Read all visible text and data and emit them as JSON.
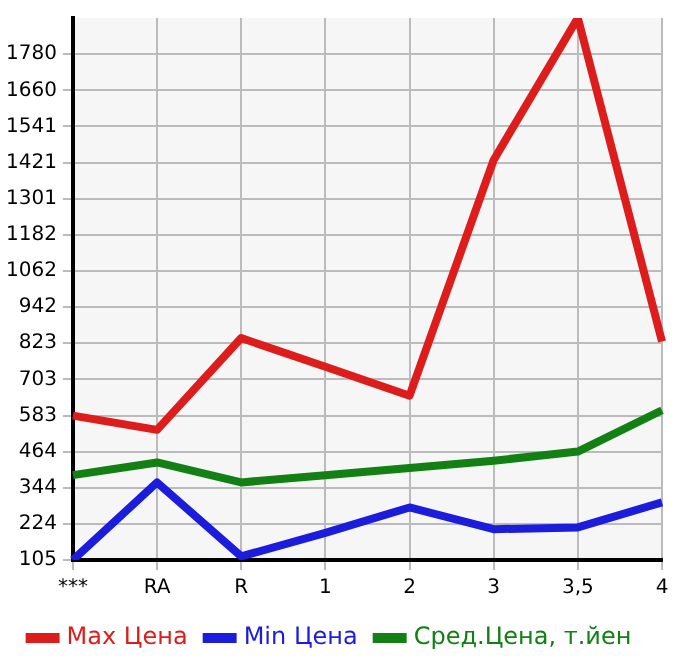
{
  "chart_data": {
    "type": "line",
    "categories": [
      "***",
      "RA",
      "R",
      "1",
      "2",
      "3",
      "3,5",
      "4"
    ],
    "series": [
      {
        "name": "Max Цена",
        "color": "#dd1c1c",
        "values": [
          583,
          536,
          840,
          745,
          649,
          1430,
          1900,
          829
        ]
      },
      {
        "name": "Min Цена",
        "color": "#1c1cdd",
        "values": [
          105,
          362,
          117,
          195,
          279,
          207,
          213,
          296
        ]
      },
      {
        "name": "Сред.Цена, т.йен",
        "color": "#128012",
        "values": [
          386,
          428,
          362,
          386,
          410,
          434,
          464,
          601
        ]
      }
    ],
    "ylim": [
      105,
      1900
    ],
    "yticks": [
      105,
      224,
      344,
      464,
      583,
      703,
      823,
      942,
      1062,
      1182,
      1301,
      1421,
      1541,
      1660,
      1780
    ],
    "grid": true,
    "legend": "bottom",
    "marker": "none",
    "line_style": "solid"
  }
}
